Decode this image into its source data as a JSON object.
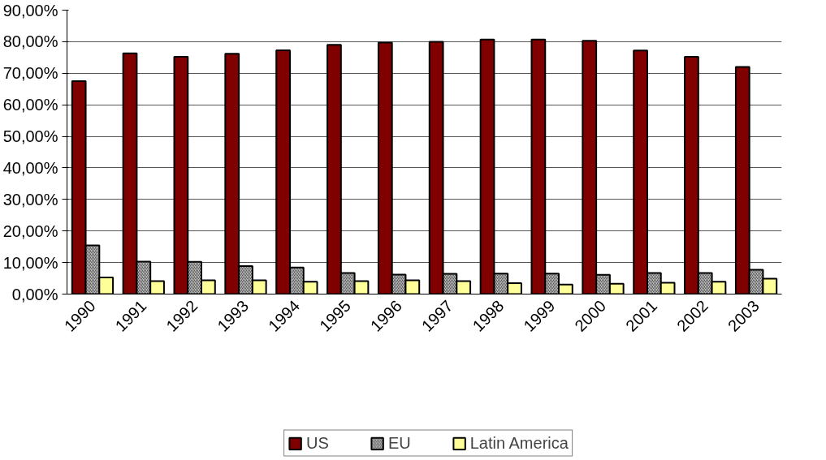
{
  "chart_data": {
    "type": "bar",
    "categories": [
      "1990",
      "1991",
      "1992",
      "1993",
      "1994",
      "1995",
      "1996",
      "1997",
      "1998",
      "1999",
      "2000",
      "2001",
      "2002",
      "2003"
    ],
    "series": [
      {
        "name": "US",
        "color": "#800000",
        "values": [
          67.5,
          76.3,
          75.2,
          76.2,
          77.3,
          79.0,
          79.7,
          80.0,
          80.7,
          80.7,
          80.3,
          77.2,
          75.2,
          72.0
        ]
      },
      {
        "name": "EU",
        "color": "#c0c0c0",
        "values": [
          15.4,
          10.3,
          10.2,
          8.9,
          8.4,
          6.7,
          6.2,
          6.4,
          6.5,
          6.5,
          6.1,
          6.7,
          6.7,
          7.7
        ]
      },
      {
        "name": "Latin America",
        "color": "#ffff99",
        "values": [
          5.3,
          4.1,
          4.4,
          4.4,
          3.9,
          4.1,
          4.4,
          4.1,
          3.5,
          3.0,
          3.3,
          3.6,
          3.9,
          4.9
        ]
      }
    ],
    "ylim": [
      0,
      90
    ],
    "yticks": [
      {
        "value": 0,
        "label": "0,00%"
      },
      {
        "value": 10,
        "label": "10,00%"
      },
      {
        "value": 20,
        "label": "20,00%"
      },
      {
        "value": 30,
        "label": "30,00%"
      },
      {
        "value": 40,
        "label": "40,00%"
      },
      {
        "value": 50,
        "label": "50,00%"
      },
      {
        "value": 60,
        "label": "60,00%"
      },
      {
        "value": 70,
        "label": "70,00%"
      },
      {
        "value": 80,
        "label": "80,00%"
      },
      {
        "value": 90,
        "label": "90,00%"
      }
    ],
    "grid": "y",
    "legend": "bottom"
  }
}
